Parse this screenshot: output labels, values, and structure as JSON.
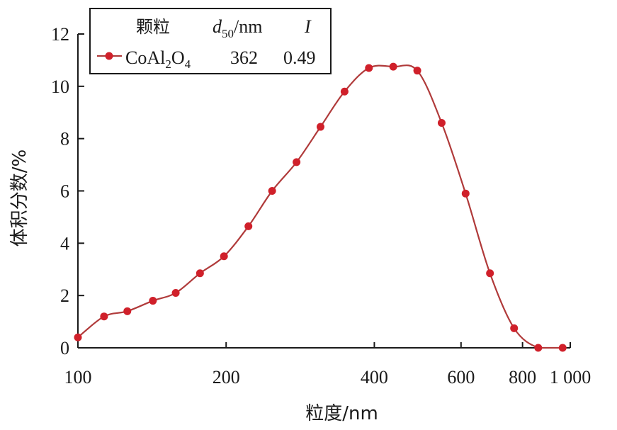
{
  "chart_data": {
    "type": "line",
    "xscale": "log",
    "xlabel": "粒度/nm",
    "ylabel": "体积分数/%",
    "xlim": [
      100,
      1000
    ],
    "ylim": [
      0,
      12
    ],
    "xticks": [
      100,
      200,
      400,
      600,
      800,
      1000
    ],
    "xtick_labels": [
      "100",
      "200",
      "400",
      "600",
      "800",
      "1 000"
    ],
    "yticks": [
      0,
      2,
      4,
      6,
      8,
      10,
      12
    ],
    "ytick_labels": [
      "0",
      "2",
      "4",
      "6",
      "8",
      "10",
      "12"
    ],
    "grid": false,
    "legend": {
      "position": "top-left",
      "header": {
        "col1": "颗粒",
        "col2_main": "d",
        "col2_sub": "50",
        "col2_unit": "/nm",
        "col3": "I"
      },
      "row": {
        "name_main": "CoAl",
        "name_sub1": "2",
        "name_mid": "O",
        "name_sub2": "4",
        "d50": "362",
        "I": "0.49"
      }
    },
    "series": [
      {
        "name": "CoAl2O4",
        "color": "#d0202a",
        "line_color": "#b03a3a",
        "x": [
          100,
          113,
          126,
          142,
          158,
          177,
          198,
          222,
          248,
          278,
          311,
          348,
          390,
          437,
          489,
          548,
          613,
          687,
          769,
          861,
          965
        ],
        "y": [
          0.4,
          1.2,
          1.4,
          1.8,
          2.1,
          2.85,
          3.5,
          4.65,
          6.0,
          7.1,
          8.45,
          9.8,
          10.7,
          10.75,
          10.6,
          8.6,
          5.9,
          2.85,
          0.75,
          0.0,
          0.0
        ]
      }
    ]
  }
}
